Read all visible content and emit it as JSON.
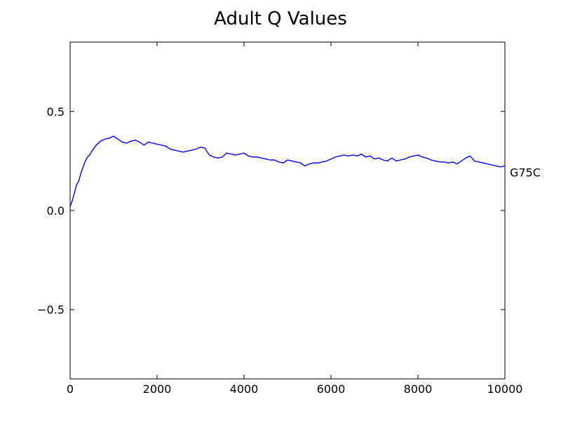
{
  "chart_data": {
    "type": "line",
    "title": "Adult Q Values",
    "xlabel": "",
    "ylabel": "",
    "xlim": [
      0,
      10000
    ],
    "ylim": [
      -0.85,
      0.85
    ],
    "xticks": [
      0,
      2000,
      4000,
      6000,
      8000,
      10000
    ],
    "xtick_labels": [
      "0",
      "2000",
      "4000",
      "6000",
      "8000",
      "10000"
    ],
    "yticks": [
      -0.5,
      0.0,
      0.5
    ],
    "ytick_labels": [
      "−0.5",
      "0.0",
      "0.5"
    ],
    "grid": false,
    "legend": null,
    "series": [
      {
        "name": "G75C",
        "color": "#0000ff",
        "x": [
          0,
          50,
          100,
          150,
          200,
          250,
          300,
          350,
          400,
          450,
          500,
          600,
          700,
          800,
          900,
          1000,
          1100,
          1200,
          1300,
          1400,
          1500,
          1600,
          1700,
          1800,
          1900,
          2000,
          2100,
          2200,
          2300,
          2400,
          2500,
          2600,
          2700,
          2800,
          2900,
          3000,
          3100,
          3200,
          3300,
          3400,
          3500,
          3600,
          3700,
          3800,
          3900,
          4000,
          4100,
          4200,
          4300,
          4400,
          4500,
          4600,
          4700,
          4800,
          4900,
          5000,
          5100,
          5200,
          5300,
          5400,
          5500,
          5600,
          5700,
          5800,
          5900,
          6000,
          6100,
          6200,
          6300,
          6400,
          6500,
          6600,
          6700,
          6800,
          6900,
          7000,
          7100,
          7200,
          7300,
          7400,
          7500,
          7600,
          7700,
          7800,
          7900,
          8000,
          8100,
          8200,
          8300,
          8400,
          8500,
          8600,
          8700,
          8800,
          8900,
          9000,
          9100,
          9200,
          9300,
          9400,
          9500,
          9600,
          9700,
          9800,
          9900,
          10000
        ],
        "values": [
          0.02,
          0.05,
          0.09,
          0.13,
          0.15,
          0.19,
          0.22,
          0.25,
          0.27,
          0.28,
          0.3,
          0.33,
          0.35,
          0.36,
          0.365,
          0.375,
          0.36,
          0.345,
          0.34,
          0.35,
          0.355,
          0.345,
          0.33,
          0.345,
          0.34,
          0.335,
          0.33,
          0.325,
          0.31,
          0.305,
          0.3,
          0.295,
          0.3,
          0.305,
          0.31,
          0.32,
          0.315,
          0.28,
          0.27,
          0.265,
          0.27,
          0.29,
          0.285,
          0.28,
          0.285,
          0.29,
          0.275,
          0.27,
          0.27,
          0.265,
          0.26,
          0.255,
          0.255,
          0.245,
          0.24,
          0.255,
          0.25,
          0.245,
          0.24,
          0.225,
          0.235,
          0.24,
          0.24,
          0.245,
          0.25,
          0.26,
          0.27,
          0.275,
          0.28,
          0.275,
          0.28,
          0.275,
          0.285,
          0.27,
          0.275,
          0.26,
          0.265,
          0.255,
          0.25,
          0.265,
          0.25,
          0.255,
          0.26,
          0.27,
          0.275,
          0.28,
          0.27,
          0.265,
          0.255,
          0.25,
          0.245,
          0.245,
          0.24,
          0.245,
          0.235,
          0.25,
          0.265,
          0.275,
          0.25,
          0.245,
          0.24,
          0.235,
          0.23,
          0.225,
          0.22,
          0.225
        ]
      }
    ]
  }
}
